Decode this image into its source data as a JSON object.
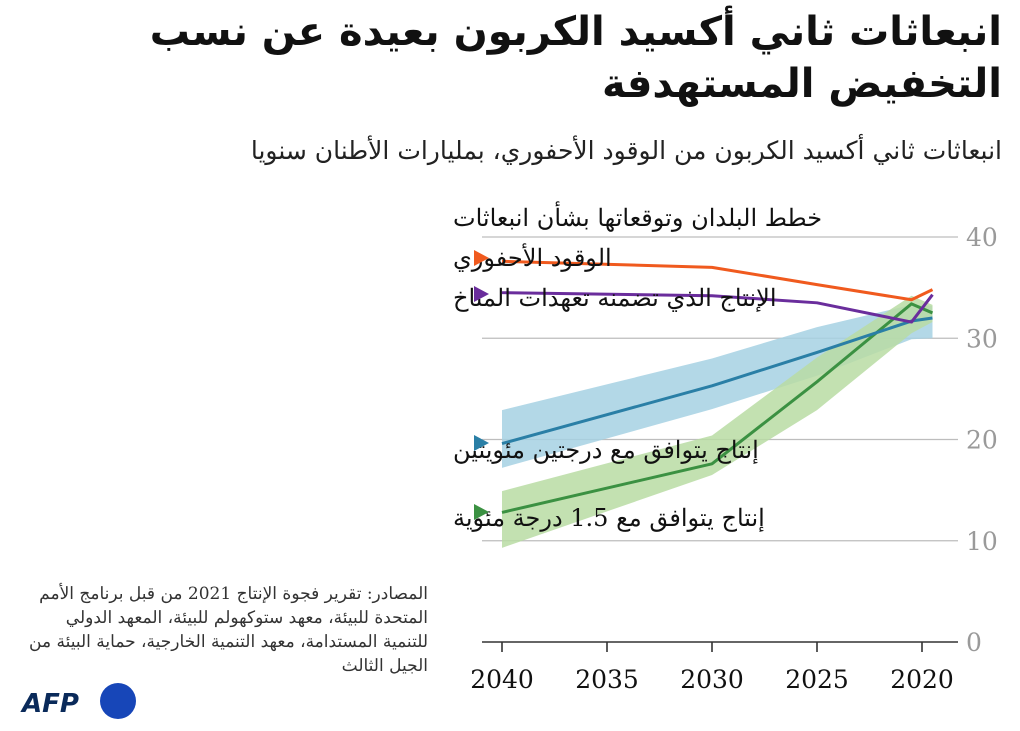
{
  "title": "انبعاثات ثاني أكسيد الكربون بعيدة عن نسب التخفيض المستهدفة",
  "subtitle": "انبعاثات ثاني أكسيد الكربون من الوقود الأحفوري، بمليارات الأطنان سنويا",
  "source": "المصادر: تقرير فجوة الإنتاج 2021 من قبل برنامج الأمم المتحدة للبيئة، معهد ستوكهولم للبيئة، المعهد الدولي للتنمية المستدامة، معهد التنمية الخارجية، حماية البيئة من الجيل الثالث",
  "logo": "AFP",
  "colors": {
    "plans": "#f05a1e",
    "production": "#6a2d9c",
    "two_deg_line": "#2a7fa6",
    "two_deg_band": "#a6d1e3",
    "one_five_line": "#3b9142",
    "one_five_band": "#b9dca3",
    "grid": "#bdbdbd"
  },
  "chart_data": {
    "type": "line",
    "x_axis": {
      "ticks": [
        2040,
        2035,
        2030,
        2025,
        2020
      ],
      "range": [
        2020,
        2040
      ],
      "direction": "reversed"
    },
    "y_axis": {
      "ticks": [
        0,
        10,
        20,
        30,
        40
      ],
      "range": [
        0,
        40
      ],
      "position": "right"
    },
    "grid": true,
    "series": [
      {
        "key": "plans",
        "name": "خطط البلدان وتوقعاتها بشأن انبعاثات الوقود الأحفوري",
        "points": [
          [
            2019.5,
            34.8
          ],
          [
            2020.5,
            33.8
          ],
          [
            2025,
            35.3
          ],
          [
            2030,
            37.0
          ],
          [
            2040,
            37.6
          ]
        ]
      },
      {
        "key": "production",
        "name": "الإنتاج الذي تضمنه تعهدات المناخ",
        "points": [
          [
            2019.5,
            34.3
          ],
          [
            2020.5,
            31.6
          ],
          [
            2025,
            33.5
          ],
          [
            2030,
            34.2
          ],
          [
            2040,
            34.5
          ]
        ]
      },
      {
        "key": "two_deg",
        "name": "إنتاج يتوافق مع درجتين مئويتين",
        "points": [
          [
            2019.5,
            32.0
          ],
          [
            2020.5,
            31.7
          ],
          [
            2025,
            28.6
          ],
          [
            2030,
            25.3
          ],
          [
            2040,
            19.6
          ]
        ],
        "band_upper": [
          [
            2019.5,
            33.2
          ],
          [
            2020.5,
            33.3
          ],
          [
            2025,
            31.1
          ],
          [
            2030,
            28.0
          ],
          [
            2040,
            22.9
          ]
        ],
        "band_lower": [
          [
            2019.5,
            30.0
          ],
          [
            2020.5,
            29.9
          ],
          [
            2025,
            26.3
          ],
          [
            2030,
            23.0
          ],
          [
            2040,
            17.2
          ]
        ]
      },
      {
        "key": "one_five",
        "name": "إنتاج يتوافق مع 1.5 درجة مئوية",
        "points": [
          [
            2019.5,
            32.5
          ],
          [
            2020.5,
            33.4
          ],
          [
            2025,
            25.7
          ],
          [
            2030,
            17.6
          ],
          [
            2040,
            12.8
          ]
        ],
        "band_upper": [
          [
            2019.5,
            33.3
          ],
          [
            2020.5,
            34.2
          ],
          [
            2025,
            28.1
          ],
          [
            2030,
            20.4
          ],
          [
            2040,
            14.9
          ]
        ],
        "band_lower": [
          [
            2019.5,
            31.6
          ],
          [
            2020.5,
            30.5
          ],
          [
            2025,
            22.9
          ],
          [
            2030,
            16.5
          ],
          [
            2040,
            9.3
          ]
        ]
      }
    ]
  }
}
